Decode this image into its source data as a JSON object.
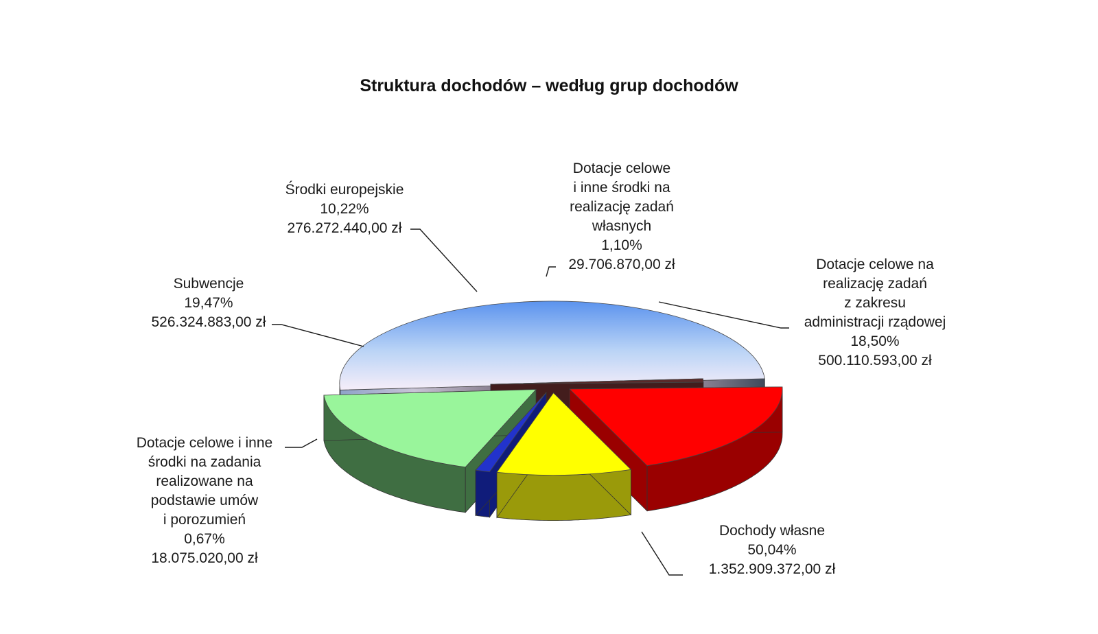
{
  "chart_data": {
    "type": "pie",
    "title": "Struktura dochodów – według grup dochodów",
    "three_d": true,
    "exploded": true,
    "slices": [
      {
        "key": "dochody-wlasne",
        "name": "Dochody własne",
        "label_lines": [
          "Dochody własne"
        ],
        "percent": 50.04,
        "percent_label": "50,04%",
        "value": 1352909372.0,
        "value_label": "1.352.909.372,00 zł",
        "color": "#6fa0e8"
      },
      {
        "key": "dotacje-umowy",
        "name": "Dotacje celowe i inne środki na zadania realizowane na podstawie umów i porozumień",
        "label_lines": [
          "Dotacje celowe i inne",
          "środki na zadania",
          "realizowane na",
          "podstawie umów",
          "i porozumień"
        ],
        "percent": 0.67,
        "percent_label": "0,67%",
        "value": 18075020.0,
        "value_label": "18.075.020,00 zł",
        "color": "#5a2a2a"
      },
      {
        "key": "subwencje",
        "name": "Subwencje",
        "label_lines": [
          "Subwencje"
        ],
        "percent": 19.47,
        "percent_label": "19,47%",
        "value": 526324883.0,
        "value_label": "526.324.883,00 zł",
        "color": "#ff0000"
      },
      {
        "key": "srodki-europejskie",
        "name": "Środki europejskie",
        "label_lines": [
          "Środki europejskie"
        ],
        "percent": 10.22,
        "percent_label": "10,22%",
        "value": 276272440.0,
        "value_label": "276.272.440,00 zł",
        "color": "#ffff00"
      },
      {
        "key": "dotacje-wlasne",
        "name": "Dotacje celowe i inne środki na realizację zadań własnych",
        "label_lines": [
          "Dotacje celowe",
          "i inne środki na",
          "realizację zadań",
          "własnych"
        ],
        "percent": 1.1,
        "percent_label": "1,10%",
        "value": 29706870.0,
        "value_label": "29.706.870,00 zł",
        "color": "#2233cc"
      },
      {
        "key": "dotacje-rzadowe",
        "name": "Dotacje celowe na realizację zadań z zakresu administracji rządowej",
        "label_lines": [
          "Dotacje celowe na",
          "realizację zadań",
          "z zakresu",
          "administracji rządowej"
        ],
        "percent": 18.5,
        "percent_label": "18,50%",
        "value": 500110593.0,
        "value_label": "500.110.593,00 zł",
        "color": "#99f59b"
      }
    ]
  }
}
